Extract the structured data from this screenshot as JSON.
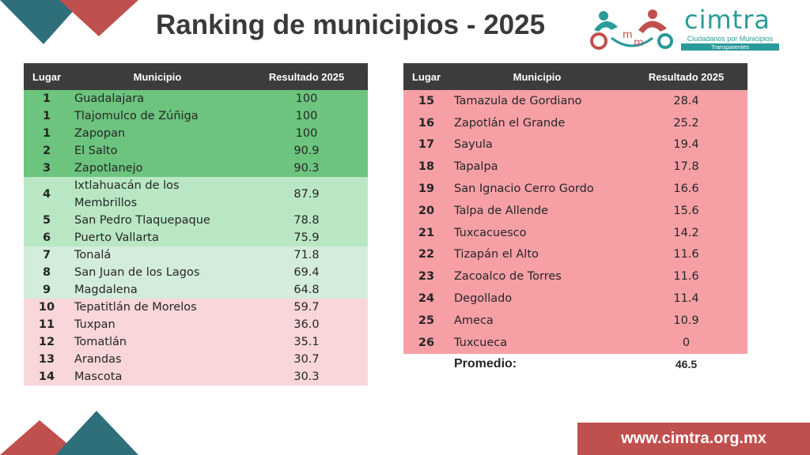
{
  "title": "Ranking de municipios - 2025",
  "logo": {
    "brand": "cimtra",
    "subtitle": "Ciudadanos por Municipios",
    "bar_text": "Transparentes",
    "brand_color": "#2b9a9a",
    "accent_color": "#c0504d"
  },
  "headers": {
    "lugar": "Lugar",
    "municipio": "Municipio",
    "resultado": "Resultado 2025"
  },
  "left_rows": [
    {
      "lugar": "1",
      "municipio": "Guadalajara",
      "resultado": "100",
      "band": "g1"
    },
    {
      "lugar": "1",
      "municipio": "Tlajomulco de Zúñiga",
      "resultado": "100",
      "band": "g1"
    },
    {
      "lugar": "1",
      "municipio": "Zapopan",
      "resultado": "100",
      "band": "g1"
    },
    {
      "lugar": "2",
      "municipio": "El Salto",
      "resultado": "90.9",
      "band": "g1"
    },
    {
      "lugar": "3",
      "municipio": "Zapotlanejo",
      "resultado": "90.3",
      "band": "g1"
    },
    {
      "lugar": "4",
      "municipio": "Ixtlahuacán de los Membrillos",
      "resultado": "87.9",
      "band": "g2"
    },
    {
      "lugar": "5",
      "municipio": "San Pedro Tlaquepaque",
      "resultado": "78.8",
      "band": "g2"
    },
    {
      "lugar": "6",
      "municipio": "Puerto Vallarta",
      "resultado": "75.9",
      "band": "g2"
    },
    {
      "lugar": "7",
      "municipio": "Tonalá",
      "resultado": "71.8",
      "band": "g3"
    },
    {
      "lugar": "8",
      "municipio": "San Juan de los Lagos",
      "resultado": "69.4",
      "band": "g3"
    },
    {
      "lugar": "9",
      "municipio": "Magdalena",
      "resultado": "64.8",
      "band": "g3"
    },
    {
      "lugar": "10",
      "municipio": "Tepatitlán de Morelos",
      "resultado": "59.7",
      "band": "p1"
    },
    {
      "lugar": "11",
      "municipio": "Tuxpan",
      "resultado": "36.0",
      "band": "p1"
    },
    {
      "lugar": "12",
      "municipio": "Tomatlán",
      "resultado": "35.1",
      "band": "p1"
    },
    {
      "lugar": "13",
      "municipio": "Arandas",
      "resultado": "30.7",
      "band": "p1"
    },
    {
      "lugar": "14",
      "municipio": "Mascota",
      "resultado": "30.3",
      "band": "p1"
    }
  ],
  "right_rows": [
    {
      "lugar": "15",
      "municipio": "Tamazula de Gordiano",
      "resultado": "28.4",
      "band": "r1"
    },
    {
      "lugar": "16",
      "municipio": "Zapotlán el Grande",
      "resultado": "25.2",
      "band": "r1"
    },
    {
      "lugar": "17",
      "municipio": "Sayula",
      "resultado": "19.4",
      "band": "r1"
    },
    {
      "lugar": "18",
      "municipio": "Tapalpa",
      "resultado": "17.8",
      "band": "r1"
    },
    {
      "lugar": "19",
      "municipio": "San Ignacio Cerro Gordo",
      "resultado": "16.6",
      "band": "r1"
    },
    {
      "lugar": "20",
      "municipio": "Talpa de Allende",
      "resultado": "15.6",
      "band": "r1"
    },
    {
      "lugar": "21",
      "municipio": "Tuxcacuesco",
      "resultado": "14.2",
      "band": "r1"
    },
    {
      "lugar": "22",
      "municipio": "Tizapán el Alto",
      "resultado": "11.6",
      "band": "r1"
    },
    {
      "lugar": "23",
      "municipio": "Zacoalco de Torres",
      "resultado": "11.6",
      "band": "r1"
    },
    {
      "lugar": "24",
      "municipio": "Degollado",
      "resultado": "11.4",
      "band": "r1"
    },
    {
      "lugar": "25",
      "municipio": "Ameca",
      "resultado": "10.9",
      "band": "r1"
    },
    {
      "lugar": "26",
      "municipio": "Tuxcueca",
      "resultado": "0",
      "band": "r1"
    }
  ],
  "average": {
    "label": "Promedio:",
    "value": "46.5"
  },
  "footer": {
    "url": "www.cimtra.org.mx"
  },
  "colors": {
    "header": "#3c3c3c",
    "green_dark": "#6cc47e",
    "green_light": "#b9e7c3",
    "green_pale": "#d4ecdc",
    "pink_pale": "#f8d6d9",
    "red": "#f6a0a6",
    "teal": "#2e6f7a",
    "brick": "#c0504d"
  }
}
